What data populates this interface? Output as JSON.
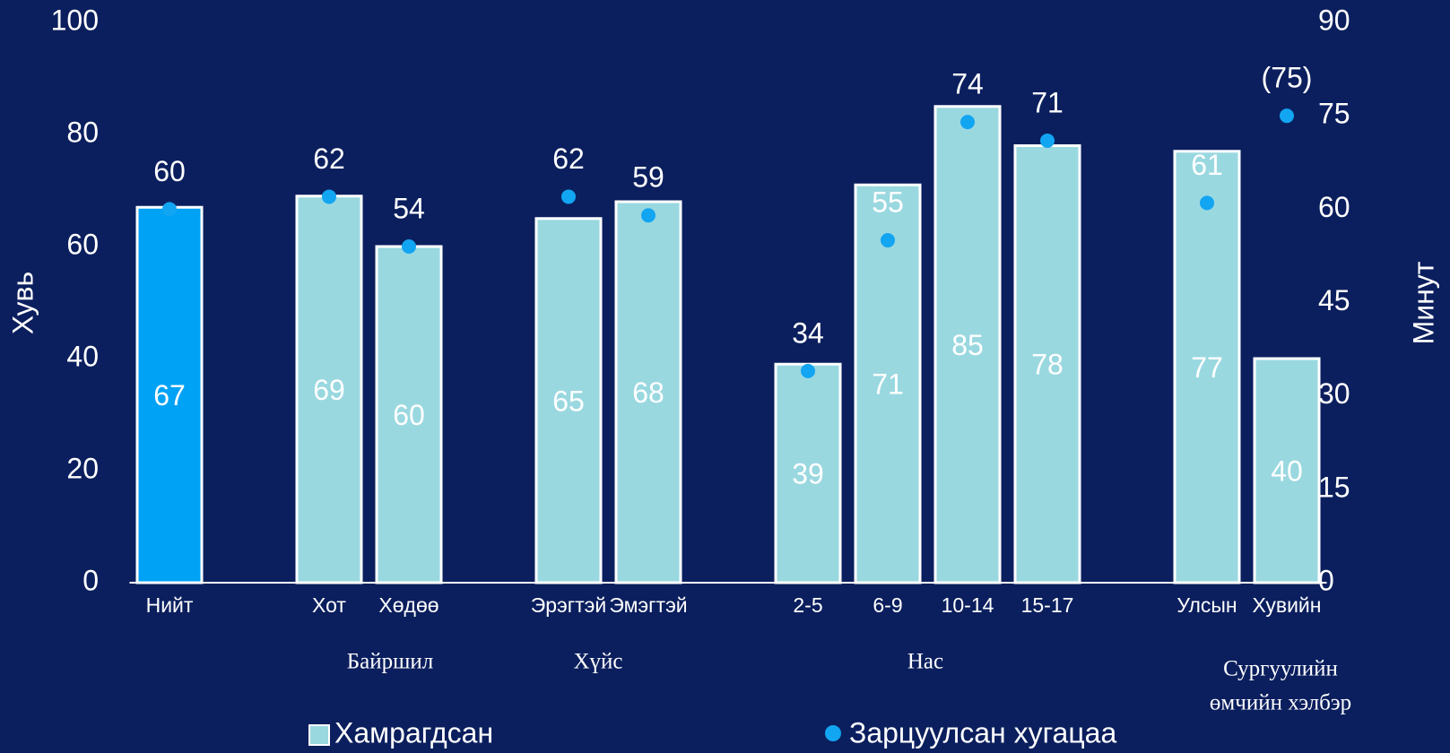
{
  "chart_data": {
    "type": "bar",
    "y_label": "Хувь",
    "y2_label": "Минут",
    "categories": [
      "Нийт",
      null,
      "Хот",
      "Хөдөө",
      null,
      "Эрэгтэй",
      "Эмэгтэй",
      null,
      "2-5",
      "6-9",
      "10-14",
      "15-17",
      null,
      "Улсын",
      "Хувийн"
    ],
    "groups": [
      [
        "Байршил"
      ],
      [
        "Хүйс"
      ],
      [
        "Нас"
      ],
      [
        "Сургуулийн",
        "өмчийн хэлбэр"
      ]
    ],
    "series": [
      {
        "name": "Хамрагдсан",
        "type": "bar",
        "color": "#9ad8e0",
        "colors": [
          "#00a2f5",
          null,
          "#9ad8e0",
          "#9ad8e0",
          null,
          "#9ad8e0",
          "#9ad8e0",
          null,
          "#9ad8e0",
          "#9ad8e0",
          "#9ad8e0",
          "#9ad8e0",
          null,
          "#9ad8e0",
          "#9ad8e0"
        ],
        "values": [
          67,
          null,
          69,
          60,
          null,
          65,
          68,
          null,
          39,
          71,
          85,
          78,
          null,
          77,
          40
        ]
      },
      {
        "name": "Зарцуулсан хугацаа",
        "type": "scatter",
        "axis": "y2",
        "color": "#12a5f2",
        "values": [
          60,
          null,
          62,
          54,
          null,
          62,
          59,
          null,
          34,
          55,
          74,
          71,
          null,
          61,
          75
        ],
        "value_labels": [
          "60",
          null,
          "62",
          "54",
          null,
          "62",
          "59",
          null,
          "34",
          "55",
          "74",
          "71",
          null,
          "61",
          "(75)"
        ]
      }
    ],
    "ylim": [
      0,
      100
    ],
    "yticks": [
      0,
      20,
      40,
      60,
      80,
      100
    ],
    "y2lim": [
      0,
      90
    ],
    "y2ticks": [
      0,
      15,
      30,
      45,
      60,
      75,
      90
    ],
    "legend": "bottom"
  }
}
